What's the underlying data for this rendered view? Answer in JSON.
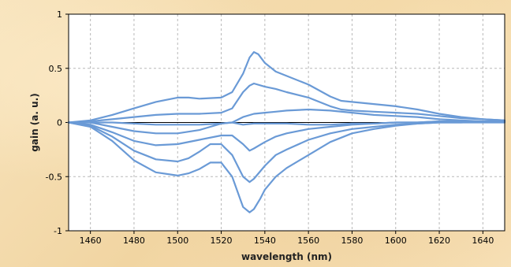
{
  "chart_data": {
    "type": "line",
    "title": "",
    "xlabel": "wavelength (nm)",
    "ylabel": "gain (a. u.)",
    "xlim": [
      1450,
      1650
    ],
    "ylim": [
      -1,
      1
    ],
    "x_ticks": [
      1460,
      1480,
      1500,
      1520,
      1540,
      1560,
      1580,
      1600,
      1620,
      1640
    ],
    "y_ticks": [
      -1,
      -0.5,
      0,
      0.5,
      1
    ],
    "x_tick_labels": [
      "1460",
      "1480",
      "1500",
      "1520",
      "1540",
      "1560",
      "1580",
      "1600",
      "1620",
      "1640"
    ],
    "y_tick_labels": [
      "-1",
      "-0.5",
      "0",
      "0.5",
      "1"
    ],
    "grid": true,
    "line_color": "#6a9ad6",
    "zero_line_color": "#000000",
    "zero_line": {
      "x": [
        1450,
        1650
      ],
      "y": [
        0,
        0
      ]
    },
    "series": [
      {
        "x": [
          1450,
          1460,
          1470,
          1480,
          1490,
          1500,
          1505,
          1510,
          1520,
          1525,
          1530,
          1533,
          1535,
          1537,
          1540,
          1545,
          1550,
          1560,
          1570,
          1575,
          1580,
          1590,
          1600,
          1610,
          1620,
          1630,
          1640,
          1650
        ],
        "y": [
          0,
          0.02,
          0.07,
          0.13,
          0.19,
          0.23,
          0.23,
          0.22,
          0.23,
          0.28,
          0.45,
          0.6,
          0.65,
          0.63,
          0.55,
          0.47,
          0.43,
          0.35,
          0.24,
          0.2,
          0.19,
          0.17,
          0.15,
          0.12,
          0.08,
          0.05,
          0.03,
          0.02
        ]
      },
      {
        "x": [
          1450,
          1460,
          1470,
          1480,
          1490,
          1500,
          1510,
          1520,
          1525,
          1530,
          1533,
          1535,
          1540,
          1545,
          1550,
          1560,
          1570,
          1575,
          1580,
          1590,
          1600,
          1610,
          1620,
          1630,
          1640,
          1650
        ],
        "y": [
          0,
          0.01,
          0.03,
          0.05,
          0.07,
          0.08,
          0.08,
          0.09,
          0.13,
          0.28,
          0.34,
          0.36,
          0.33,
          0.31,
          0.28,
          0.23,
          0.15,
          0.12,
          0.11,
          0.1,
          0.09,
          0.08,
          0.06,
          0.04,
          0.03,
          0.02
        ]
      },
      {
        "x": [
          1450,
          1460,
          1470,
          1480,
          1490,
          1500,
          1510,
          1520,
          1525,
          1530,
          1535,
          1540,
          1545,
          1550,
          1560,
          1570,
          1580,
          1590,
          1600,
          1610,
          1620,
          1630,
          1640,
          1650
        ],
        "y": [
          0,
          0,
          0,
          -0.01,
          -0.02,
          -0.02,
          -0.02,
          -0.01,
          0,
          0.05,
          0.08,
          0.09,
          0.1,
          0.11,
          0.12,
          0.11,
          0.09,
          0.07,
          0.06,
          0.05,
          0.03,
          0.02,
          0.01,
          0.01
        ]
      },
      {
        "x": [
          1450,
          1460,
          1470,
          1480,
          1490,
          1500,
          1510,
          1515,
          1520,
          1525,
          1530,
          1535,
          1540,
          1550,
          1560,
          1570,
          1580,
          1590,
          1600,
          1610,
          1620,
          1630,
          1640,
          1650
        ],
        "y": [
          0,
          0,
          -0.04,
          -0.08,
          -0.1,
          -0.1,
          -0.07,
          -0.04,
          -0.01,
          0,
          -0.02,
          -0.01,
          -0.01,
          -0.01,
          -0.02,
          -0.02,
          -0.01,
          -0.01,
          0,
          0,
          0.01,
          0.01,
          0.01,
          0.01
        ]
      },
      {
        "x": [
          1450,
          1460,
          1470,
          1480,
          1490,
          1500,
          1510,
          1520,
          1525,
          1530,
          1533,
          1535,
          1540,
          1545,
          1550,
          1560,
          1570,
          1580,
          1590,
          1600,
          1610,
          1620,
          1630,
          1640,
          1650
        ],
        "y": [
          0,
          -0.02,
          -0.09,
          -0.17,
          -0.21,
          -0.2,
          -0.16,
          -0.12,
          -0.12,
          -0.2,
          -0.26,
          -0.24,
          -0.18,
          -0.13,
          -0.1,
          -0.06,
          -0.04,
          -0.02,
          -0.01,
          0,
          0,
          0.01,
          0.01,
          0.01,
          0.01
        ]
      },
      {
        "x": [
          1450,
          1460,
          1470,
          1480,
          1490,
          1500,
          1505,
          1510,
          1515,
          1520,
          1525,
          1530,
          1533,
          1535,
          1540,
          1545,
          1550,
          1560,
          1570,
          1580,
          1590,
          1600,
          1610,
          1620,
          1630,
          1640,
          1650
        ],
        "y": [
          0,
          -0.03,
          -0.13,
          -0.26,
          -0.34,
          -0.36,
          -0.33,
          -0.27,
          -0.2,
          -0.2,
          -0.3,
          -0.5,
          -0.55,
          -0.52,
          -0.4,
          -0.3,
          -0.25,
          -0.16,
          -0.1,
          -0.06,
          -0.04,
          -0.02,
          -0.01,
          0,
          0,
          0.01,
          0.01
        ]
      },
      {
        "x": [
          1450,
          1460,
          1470,
          1480,
          1490,
          1500,
          1505,
          1510,
          1515,
          1520,
          1525,
          1530,
          1533,
          1535,
          1538,
          1540,
          1545,
          1550,
          1560,
          1570,
          1580,
          1590,
          1600,
          1610,
          1620,
          1630,
          1640,
          1650
        ],
        "y": [
          0,
          -0.04,
          -0.17,
          -0.35,
          -0.46,
          -0.49,
          -0.47,
          -0.43,
          -0.37,
          -0.37,
          -0.5,
          -0.78,
          -0.83,
          -0.8,
          -0.7,
          -0.62,
          -0.5,
          -0.42,
          -0.3,
          -0.18,
          -0.1,
          -0.06,
          -0.03,
          -0.01,
          0,
          0,
          0,
          0
        ]
      }
    ]
  }
}
